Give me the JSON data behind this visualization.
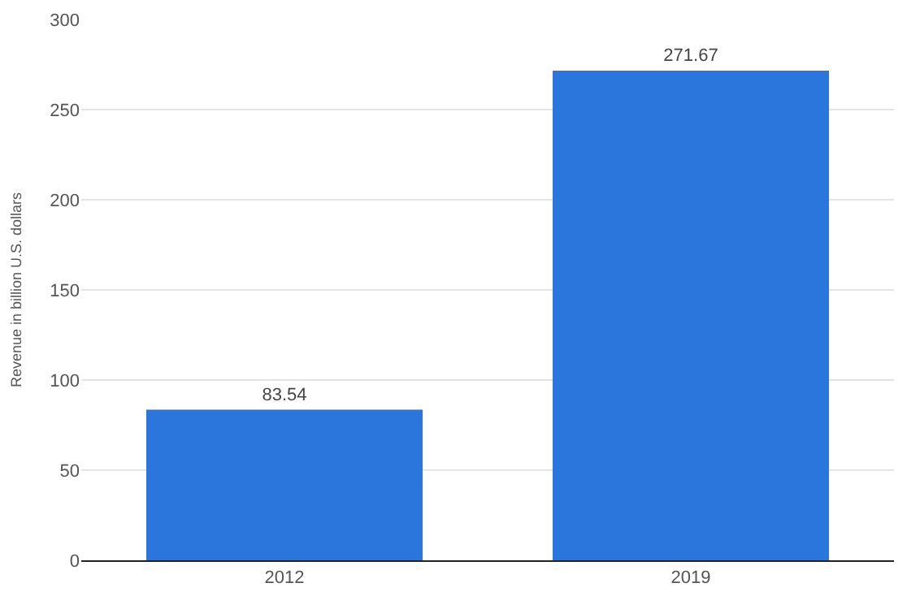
{
  "chart_data": {
    "type": "bar",
    "ylabel": "Revenue in billion U.S. dollars",
    "categories": [
      "2012",
      "2019"
    ],
    "values": [
      83.54,
      271.67
    ],
    "color": "#2a76dd",
    "ylim": [
      0,
      300
    ],
    "yticks": [
      0,
      50,
      100,
      150,
      200,
      250,
      300
    ],
    "grid": "y",
    "data_labels": true
  }
}
